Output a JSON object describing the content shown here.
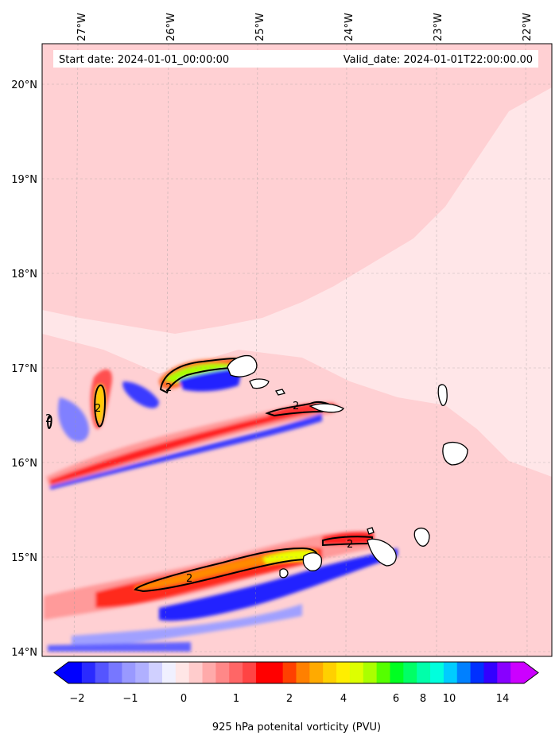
{
  "chart_data": {
    "type": "heatmap",
    "title": "",
    "header_left": "Start date: 2024-01-01_00:00:00",
    "header_right": "Valid_date: 2024-01-01T22:00:00.00",
    "x_ticks": [
      "27°W",
      "26°W",
      "25°W",
      "24°W",
      "23°W",
      "22°W"
    ],
    "x_tick_values": [
      -27,
      -26,
      -25,
      -24,
      -23,
      -22
    ],
    "y_ticks": [
      "20°N",
      "19°N",
      "18°N",
      "17°N",
      "16°N",
      "15°N",
      "14°N"
    ],
    "y_tick_values": [
      20,
      19,
      18,
      17,
      16,
      15,
      14
    ],
    "xlim": [
      -27.35,
      -21.7
    ],
    "ylim": [
      13.95,
      20.43
    ],
    "colorbar": {
      "label": "925 hPa potenital vorticity (PVU)",
      "ticks": [
        "−2",
        "−1",
        "0",
        "1",
        "2",
        "4",
        "6",
        "8",
        "10",
        "14"
      ],
      "colors": [
        "#0000ff",
        "#2a2aff",
        "#5555ff",
        "#7777ff",
        "#9999ff",
        "#b0b0ff",
        "#d0d0ff",
        "#f0f0ff",
        "#ffe6e6",
        "#ffcccc",
        "#ffaaaa",
        "#ff8888",
        "#ff6666",
        "#ff4444",
        "#ff0000",
        "#ff0000",
        "#ff4000",
        "#ff8000",
        "#ffaa00",
        "#ffd000",
        "#ffee00",
        "#ddff00",
        "#aaff00",
        "#55ff00",
        "#00ff22",
        "#00ff66",
        "#00ffaa",
        "#00ffdd",
        "#00ccff",
        "#0080ff",
        "#0030ff",
        "#3300ff",
        "#8800ff",
        "#cc00ff"
      ]
    },
    "contour_level": "2",
    "contour_labels": [
      "2",
      "2",
      "2",
      "2",
      "2",
      "2"
    ],
    "islands": [
      "Santo Antão",
      "São Vicente",
      "Santa Luzia",
      "São Nicolau",
      "Sal",
      "Boa Vista",
      "Santiago",
      "Fogo",
      "Brava",
      "Maio"
    ]
  }
}
